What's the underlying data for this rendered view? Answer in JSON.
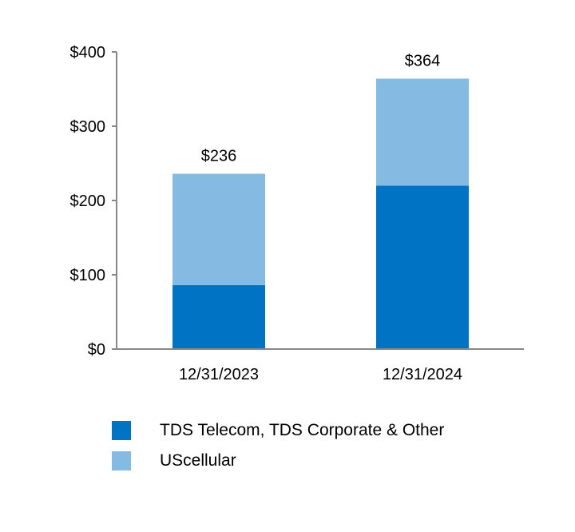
{
  "chart_data": {
    "type": "bar",
    "stacked": true,
    "categories": [
      "12/31/2023",
      "12/31/2024"
    ],
    "series": [
      {
        "name": "TDS Telecom, TDS Corporate & Other",
        "color": "#0073C4",
        "values": [
          86,
          220
        ]
      },
      {
        "name": "UScellular",
        "color": "#85BAE2",
        "values": [
          150,
          144
        ]
      }
    ],
    "totals": [
      "$236",
      "$364"
    ],
    "y_ticks": [
      0,
      100,
      200,
      300,
      400
    ],
    "y_tick_labels": [
      "$0",
      "$100",
      "$200",
      "$300",
      "$400"
    ],
    "ylim": [
      0,
      400
    ],
    "grid": false,
    "legend_position": "bottom"
  },
  "colors": {
    "axis": "#888888"
  }
}
